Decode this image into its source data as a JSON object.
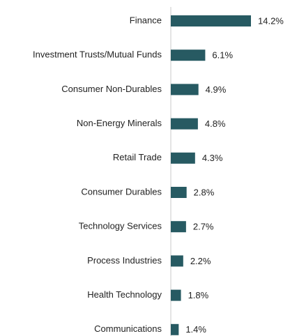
{
  "chart_data": {
    "type": "bar",
    "orientation": "horizontal",
    "categories": [
      "Finance",
      "Investment Trusts/Mutual Funds",
      "Consumer Non-Durables",
      "Non-Energy Minerals",
      "Retail Trade",
      "Consumer Durables",
      "Technology Services",
      "Process Industries",
      "Health Technology",
      "Communications"
    ],
    "values": [
      14.2,
      6.1,
      4.9,
      4.8,
      4.3,
      2.8,
      2.7,
      2.2,
      1.8,
      1.4
    ],
    "value_labels": [
      "14.2%",
      "6.1%",
      "4.9%",
      "4.8%",
      "4.3%",
      "2.8%",
      "2.7%",
      "2.2%",
      "1.8%",
      "1.4%"
    ],
    "color": "#275a62"
  }
}
